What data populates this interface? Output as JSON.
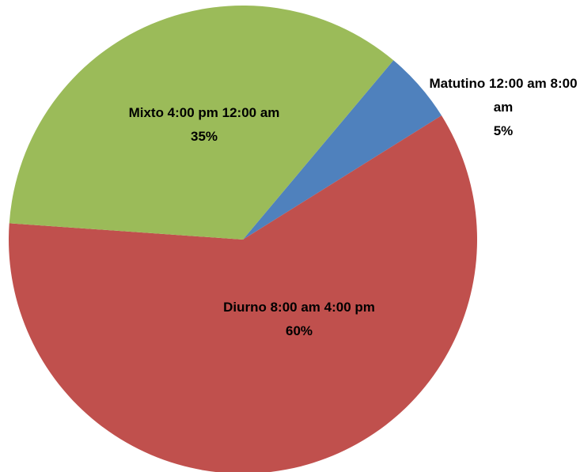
{
  "chart_data": {
    "type": "pie",
    "categories": [
      "Matutino 12:00 am 8:00 am",
      "Diurno 8:00 am 4:00 pm",
      "Mixto 4:00 pm 12:00 am"
    ],
    "values": [
      5,
      60,
      35
    ],
    "value_labels": [
      "5%",
      "60%",
      "35%"
    ],
    "colors": [
      "#4f81bd",
      "#c0504d",
      "#9bbb59"
    ]
  }
}
